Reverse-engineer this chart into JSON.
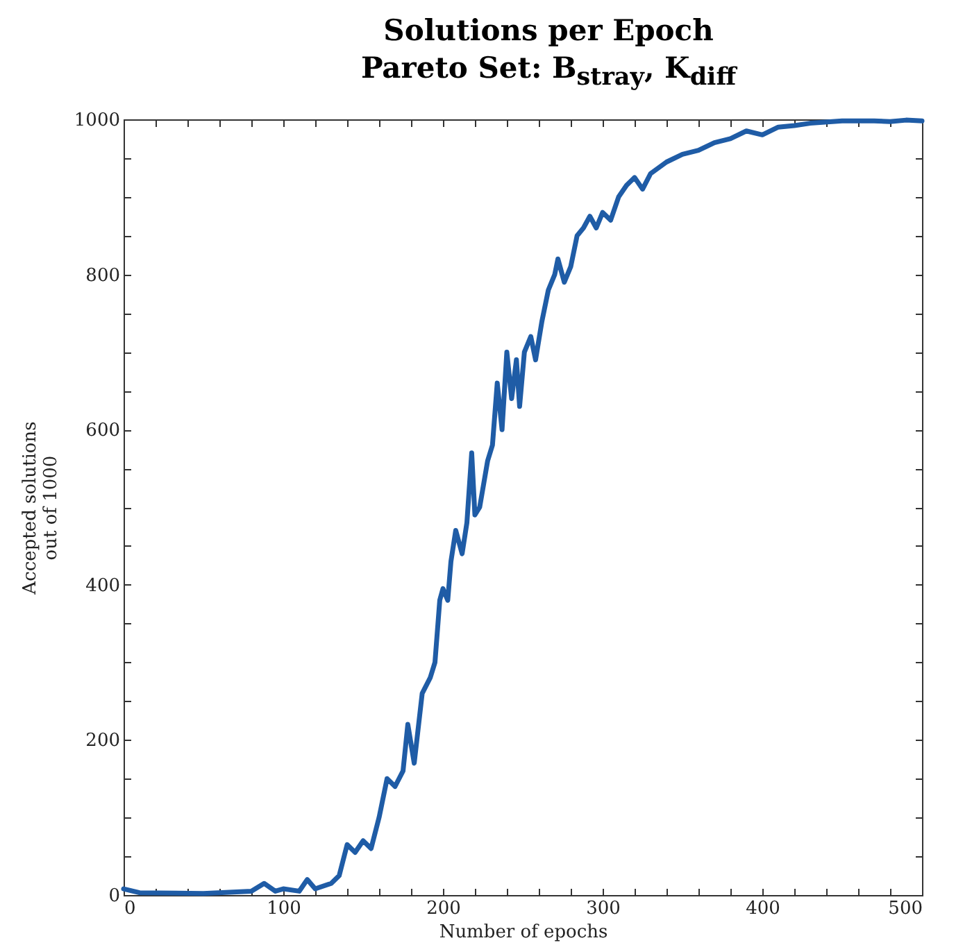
{
  "chart_data": {
    "type": "line",
    "title": "Solutions per Epoch",
    "subtitle": "Pareto Set: B$_{stray}$, K$_{diff}$",
    "xlabel": "Number of epochs",
    "ylabel": "Accepted solutions\nout of 1000",
    "series": [
      {
        "color": "#1f5ca6",
        "x": [
          0,
          10,
          50,
          80,
          88,
          95,
          100,
          110,
          115,
          120,
          130,
          135,
          140,
          145,
          150,
          155,
          160,
          165,
          170,
          175,
          178,
          182,
          187,
          192,
          195,
          198,
          200,
          203,
          205,
          208,
          212,
          215,
          218,
          220,
          223,
          228,
          231,
          234,
          237,
          240,
          243,
          246,
          248,
          251,
          255,
          258,
          262,
          266,
          270,
          272,
          276,
          280,
          284,
          288,
          292,
          296,
          300,
          305,
          310,
          315,
          320,
          325,
          330,
          340,
          350,
          360,
          370,
          380,
          390,
          400,
          410,
          420,
          430,
          450,
          470,
          480,
          490,
          500
        ],
        "values": [
          8,
          3,
          2,
          5,
          15,
          5,
          8,
          5,
          20,
          8,
          15,
          25,
          65,
          55,
          70,
          60,
          100,
          150,
          140,
          160,
          220,
          170,
          260,
          280,
          300,
          380,
          395,
          380,
          430,
          470,
          440,
          480,
          570,
          490,
          500,
          560,
          580,
          660,
          600,
          700,
          640,
          690,
          630,
          700,
          720,
          690,
          740,
          780,
          800,
          820,
          790,
          810,
          850,
          860,
          875,
          860,
          880,
          870,
          900,
          915,
          925,
          910,
          930,
          945,
          955,
          960,
          970,
          975,
          985,
          980,
          990,
          992,
          995,
          998,
          998,
          997,
          999,
          998
        ]
      }
    ],
    "xlim": [
      0,
      500
    ],
    "ylim": [
      0,
      1000
    ],
    "xticks": [
      0,
      {
        "value": 20,
        "label": null
      },
      {
        "value": 40,
        "label": null
      },
      {
        "value": 60,
        "label": null
      },
      {
        "value": 80,
        "label": null
      },
      100,
      {
        "value": 120,
        "label": null
      },
      {
        "value": 140,
        "label": null
      },
      {
        "value": 160,
        "label": null
      },
      {
        "value": 180,
        "label": null
      },
      200,
      {
        "value": 220,
        "label": null
      },
      {
        "value": 240,
        "label": null
      },
      {
        "value": 260,
        "label": null
      },
      {
        "value": 280,
        "label": null
      },
      300,
      {
        "value": 320,
        "label": null
      },
      {
        "value": 340,
        "label": null
      },
      {
        "value": 360,
        "label": null
      },
      {
        "value": 380,
        "label": null
      },
      400,
      {
        "value": 420,
        "label": null
      },
      {
        "value": 440,
        "label": null
      },
      {
        "value": 460,
        "label": null
      },
      {
        "value": 480,
        "label": null
      },
      500
    ],
    "yticks": [
      0,
      {
        "value": 50,
        "label": null
      },
      {
        "value": 100,
        "label": null
      },
      {
        "value": 150,
        "label": null
      },
      200,
      {
        "value": 250,
        "label": null
      },
      {
        "value": 300,
        "label": null
      },
      {
        "value": 350,
        "label": null
      },
      400,
      {
        "value": 450,
        "label": null
      },
      {
        "value": 500,
        "label": null
      },
      {
        "value": 550,
        "label": null
      },
      600,
      {
        "value": 650,
        "label": null
      },
      {
        "value": 700,
        "label": null
      },
      {
        "value": 750,
        "label": null
      },
      800,
      {
        "value": 850,
        "label": null
      },
      {
        "value": 900,
        "label": null
      },
      {
        "value": 950,
        "label": null
      },
      1000
    ],
    "grid": false,
    "line_style": "solid"
  }
}
